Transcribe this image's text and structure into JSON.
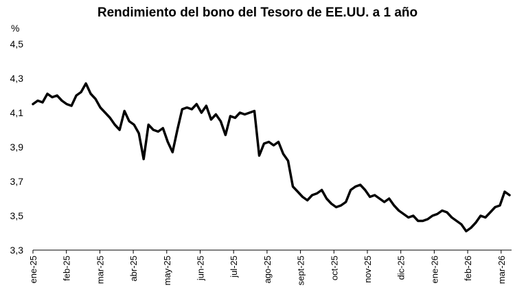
{
  "chart_data": {
    "type": "line",
    "title": "Rendimiento del bono del Tesoro de EE.UU. a 1 año",
    "ylabel": "%",
    "xlabel": "",
    "ylim": [
      3.3,
      4.5
    ],
    "yticks": [
      3.3,
      3.5,
      3.7,
      3.9,
      4.1,
      4.3,
      4.5
    ],
    "ytick_labels": [
      "3,3",
      "3,5",
      "3,7",
      "3,9",
      "4,1",
      "4,3",
      "4,5"
    ],
    "xticks": [
      "ene-25",
      "feb-25",
      "mar-25",
      "abr-25",
      "may-25",
      "jun-25",
      "jul-25",
      "ago-25",
      "sept-25",
      "oct-25",
      "nov-25",
      "dic-25",
      "ene-26",
      "feb-26",
      "mar-26"
    ],
    "grid": false,
    "legend": "none",
    "line_color": "#000000",
    "series": [
      {
        "x_start": "ene-25",
        "x_step_days": 5,
        "values": [
          4.15,
          4.17,
          4.16,
          4.21,
          4.19,
          4.2,
          4.17,
          4.15,
          4.14,
          4.2,
          4.22,
          4.27,
          4.21,
          4.18,
          4.13,
          4.1,
          4.07,
          4.03,
          4.0,
          4.11,
          4.05,
          4.03,
          3.98,
          3.83,
          4.03,
          4.0,
          3.99,
          4.01,
          3.93,
          3.87,
          4.0,
          4.12,
          4.13,
          4.12,
          4.15,
          4.1,
          4.14,
          4.06,
          4.09,
          4.05,
          3.97,
          4.08,
          4.07,
          4.1,
          4.09,
          4.1,
          4.11,
          3.85,
          3.92,
          3.93,
          3.91,
          3.93,
          3.86,
          3.82,
          3.67,
          3.64,
          3.61,
          3.59,
          3.62,
          3.63,
          3.65,
          3.6,
          3.57,
          3.55,
          3.56,
          3.58,
          3.65,
          3.67,
          3.68,
          3.65,
          3.61,
          3.62,
          3.6,
          3.58,
          3.6,
          3.56,
          3.53,
          3.51,
          3.49,
          3.5,
          3.47,
          3.47,
          3.48,
          3.5,
          3.51,
          3.53,
          3.52,
          3.49,
          3.47,
          3.45,
          3.41,
          3.43,
          3.46,
          3.5,
          3.49,
          3.52,
          3.55,
          3.56,
          3.64,
          3.62
        ]
      }
    ]
  }
}
